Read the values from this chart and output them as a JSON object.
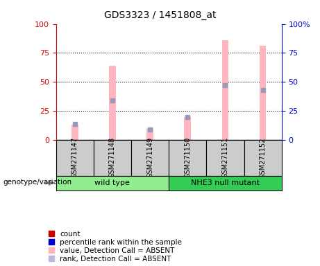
{
  "title": "GDS3323 / 1451808_at",
  "samples": [
    "GSM271147",
    "GSM271148",
    "GSM271149",
    "GSM271150",
    "GSM271151",
    "GSM271152"
  ],
  "groups": [
    {
      "name": "wild type",
      "color": "#90EE90",
      "indices": [
        0,
        1,
        2
      ]
    },
    {
      "name": "NHE3 null mutant",
      "color": "#33CC55",
      "indices": [
        3,
        4,
        5
      ]
    }
  ],
  "pink_bar_values": [
    13,
    64,
    10,
    20,
    86,
    81
  ],
  "blue_marker_values": [
    14,
    34,
    9,
    20,
    47,
    43
  ],
  "left_axis_color": "#CC0000",
  "right_axis_color": "#0000CC",
  "left_ylim": [
    0,
    100
  ],
  "right_ylim": [
    0,
    100
  ],
  "left_yticks": [
    0,
    25,
    50,
    75,
    100
  ],
  "right_yticks": [
    0,
    25,
    50,
    75,
    100
  ],
  "right_yticklabels": [
    "0",
    "25",
    "50",
    "75",
    "100%"
  ],
  "grid_lines": [
    25,
    50,
    75
  ],
  "pink_bar_color": "#FFB6C1",
  "blue_marker_color": "#9999BB",
  "legend_items": [
    {
      "color": "#CC0000",
      "label": "count"
    },
    {
      "color": "#0000CC",
      "label": "percentile rank within the sample"
    },
    {
      "color": "#FFB6C1",
      "label": "value, Detection Call = ABSENT"
    },
    {
      "color": "#BBBBDD",
      "label": "rank, Detection Call = ABSENT"
    }
  ],
  "bar_width": 0.18,
  "marker_size": 5,
  "background_color": "#FFFFFF",
  "plot_bg_color": "#FFFFFF",
  "genotype_label": "genotype/variation",
  "sample_box_color": "#CCCCCC"
}
